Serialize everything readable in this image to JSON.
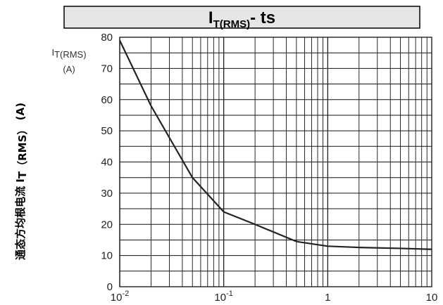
{
  "chart_data": {
    "type": "line",
    "title": {
      "main": "I",
      "sub": "T(RMS)",
      "tail": "- ts"
    },
    "ylabel_side": {
      "prefix": "通态方均根电流 I",
      "sub": "T（RMS）",
      "suffix": " (A)"
    },
    "yunit": {
      "main": "I",
      "sub": "T(RMS)",
      "unit": "(A)"
    },
    "xscale": "log",
    "xlim": [
      0.01,
      10
    ],
    "ylim": [
      0,
      80
    ],
    "yticks": [
      0,
      10,
      20,
      30,
      40,
      50,
      60,
      70,
      80
    ],
    "xticks": [
      {
        "base": "10",
        "exp": "-2"
      },
      {
        "base": "10",
        "exp": "-1"
      },
      {
        "base": "1",
        "exp": ""
      },
      {
        "base": "10",
        "exp": ""
      }
    ],
    "grid": true,
    "x": [
      0.01,
      0.02,
      0.05,
      0.1,
      0.2,
      0.5,
      1,
      2,
      5,
      10
    ],
    "series": [
      {
        "values": [
          79,
          58,
          35,
          24,
          20,
          14.5,
          13,
          12.6,
          12.3,
          12
        ]
      }
    ],
    "colors": {
      "line": "#222222",
      "grid": "#111111",
      "title_bg": "#e6e6e6"
    }
  }
}
